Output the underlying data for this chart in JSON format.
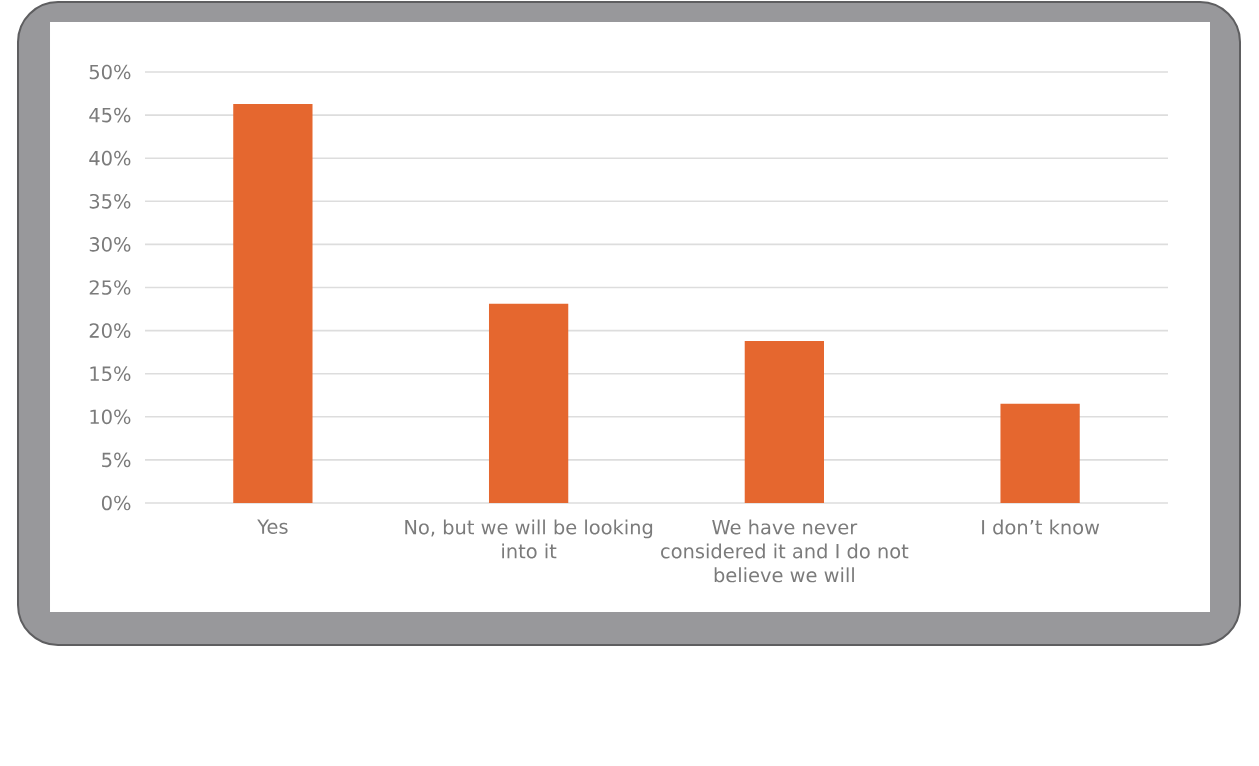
{
  "chart_data": {
    "type": "bar",
    "categories": [
      "Yes",
      "No, but we will be looking into it",
      "We have never considered it and I do not believe we will",
      "I don’t know"
    ],
    "values": [
      46.3,
      23.1,
      18.8,
      11.5
    ],
    "color": "#e5672f",
    "ylim": [
      0,
      50
    ],
    "yticks": [
      {
        "value": 0,
        "label": "0%"
      },
      {
        "value": 5,
        "label": "5%"
      },
      {
        "value": 10,
        "label": "10%"
      },
      {
        "value": 15,
        "label": "15%"
      },
      {
        "value": 20,
        "label": "20%"
      },
      {
        "value": 25,
        "label": "25%"
      },
      {
        "value": 30,
        "label": "30%"
      },
      {
        "value": 35,
        "label": "35%"
      },
      {
        "value": 40,
        "label": "40%"
      },
      {
        "value": 45,
        "label": "45%"
      },
      {
        "value": 50,
        "label": "50%"
      }
    ],
    "grid": "y"
  }
}
